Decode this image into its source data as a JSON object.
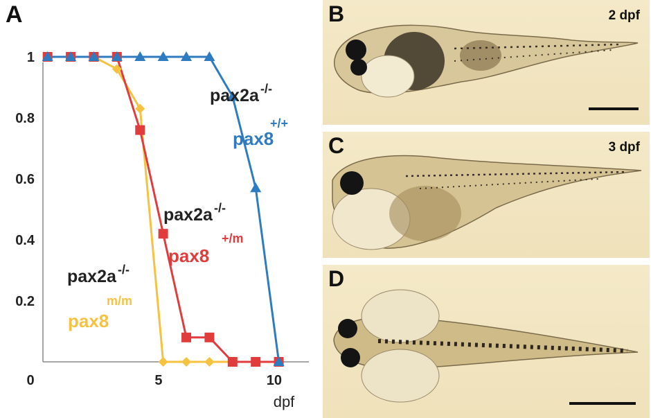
{
  "panels": {
    "a": "A",
    "b": {
      "letter": "B",
      "stage": "2 dpf"
    },
    "c": {
      "letter": "C",
      "stage": "3 dpf"
    },
    "d": {
      "letter": "D"
    }
  },
  "chart_data": {
    "type": "line",
    "title": "",
    "xlabel": "dpf",
    "ylabel": "",
    "xlim": [
      0,
      11.5
    ],
    "ylim": [
      0,
      1.05
    ],
    "x_ticks": [
      0,
      5,
      10
    ],
    "y_ticks": [
      1,
      0.8,
      0.6,
      0.4,
      0.2
    ],
    "grid": false,
    "series": [
      {
        "label_main": "pax2a",
        "label_main_sup": "-/-",
        "label_gene": "pax8",
        "label_gene_sup": "+/+",
        "color": "#2f7bbf",
        "marker": "triangle",
        "x": [
          0.2,
          1.2,
          2.2,
          3.2,
          4.2,
          5.2,
          6.2,
          7.2,
          8.2,
          9.2,
          10.2
        ],
        "y": [
          1,
          1,
          1,
          1,
          1,
          1,
          1,
          1,
          0.87,
          0.57,
          0
        ]
      },
      {
        "label_main": "pax2a",
        "label_main_sup": "-/-",
        "label_gene": "pax8",
        "label_gene_sup": "+/m",
        "color": "#e03c3c",
        "marker": "square",
        "x": [
          0.2,
          1.2,
          2.2,
          3.2,
          4.2,
          5.2,
          6.2,
          7.2,
          8.2,
          9.2,
          10.2
        ],
        "y": [
          1,
          1,
          1,
          1,
          0.76,
          0.42,
          0.08,
          0.08,
          0,
          0,
          0
        ]
      },
      {
        "label_main": "pax2a",
        "label_main_sup": "-/-",
        "label_gene": "pax8",
        "label_gene_sup": "m/m",
        "color": "#f5c242",
        "marker": "diamond",
        "x": [
          0.2,
          1.2,
          2.2,
          3.2,
          4.2,
          5.2,
          6.2,
          7.2,
          8.2,
          9.2,
          10.2
        ],
        "y": [
          1,
          1,
          1,
          0.96,
          0.83,
          0,
          0,
          0,
          0,
          0,
          0
        ]
      }
    ]
  }
}
